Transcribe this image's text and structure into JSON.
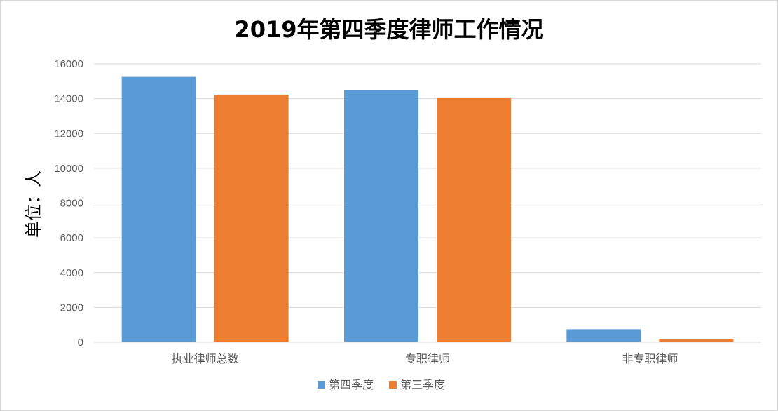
{
  "chart_data": {
    "type": "bar",
    "title": "2019年第四季度律师工作情况",
    "xlabel": "",
    "ylabel": "单位：人",
    "categories": [
      "执业律师总数",
      "专职律师",
      "非专职律师"
    ],
    "series": [
      {
        "name": "第四季度",
        "values": [
          15250,
          14500,
          750
        ],
        "color": "#5b9bd5"
      },
      {
        "name": "第三季度",
        "values": [
          14230,
          14030,
          200
        ],
        "color": "#ed7d31"
      }
    ],
    "ylim": [
      0,
      16000
    ],
    "yticks": [
      0,
      2000,
      4000,
      6000,
      8000,
      10000,
      12000,
      14000,
      16000
    ],
    "grid": true,
    "legend_position": "bottom"
  }
}
